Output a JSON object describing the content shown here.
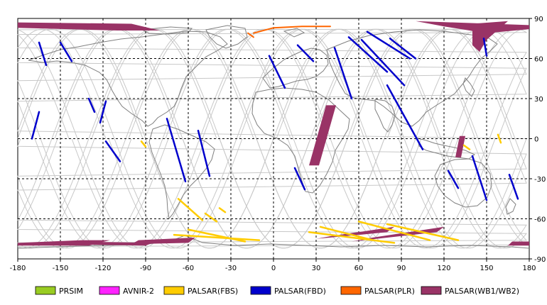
{
  "map": {
    "x_ticks": [
      "-180",
      "-150",
      "-120",
      "-90",
      "-60",
      "-30",
      "0",
      "30",
      "60",
      "90",
      "120",
      "150",
      "180"
    ],
    "y_ticks": [
      "90",
      "60",
      "30",
      "0",
      "-30",
      "-60",
      "-90"
    ],
    "x_range": [
      -180,
      180
    ],
    "y_range": [
      -90,
      90
    ],
    "grid": "dashed"
  },
  "legend": [
    {
      "label": "PRSIM",
      "color": "#99cc22"
    },
    {
      "label": "AVNIR-2",
      "color": "#ff22ff"
    },
    {
      "label": "PALSAR(FBS)",
      "color": "#ffcc00"
    },
    {
      "label": "PALSAR(FBD)",
      "color": "#0000cc"
    },
    {
      "label": "PALSAR(PLR)",
      "color": "#ff6600"
    },
    {
      "label": "PALSAR(WB1/WB2)",
      "color": "#993366"
    }
  ],
  "colors": {
    "orbit_track": "#c8c8c8",
    "coastline": "#808080",
    "fbs": "#ffcc00",
    "fbd": "#0000cc",
    "plr": "#ff6600",
    "wb": "#993366"
  }
}
